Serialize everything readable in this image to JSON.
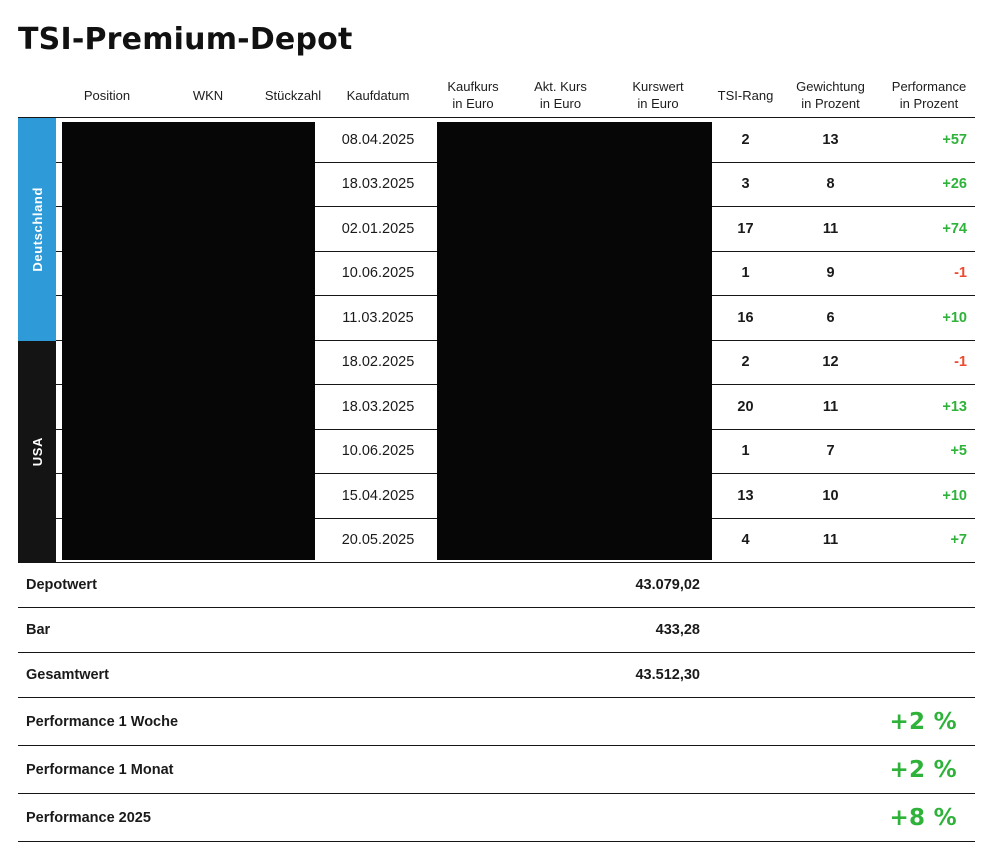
{
  "title": "TSI-Premium-Depot",
  "colors": {
    "green": "#2fb23a",
    "red": "#ee4b2e",
    "line": "#161616"
  },
  "table": {
    "headers": [
      "Position",
      "WKN",
      "Stückzahl",
      "Kaufdatum",
      "Kaufkurs\nin Euro",
      "Akt. Kurs\nin Euro",
      "Kurswert\nin Euro",
      "TSI-Rang",
      "Gewichtung\nin Prozent",
      "Performance\nin Prozent"
    ],
    "redacted_note": "Values in Position, WKN, Stückzahl, Kaufkurs, Akt. Kurs and Kurswert columns are blacked out",
    "groups": [
      {
        "label": "Deutschland",
        "color": "#2e9bd8"
      },
      {
        "label": "USA",
        "color": "#141414"
      }
    ],
    "rows": [
      {
        "group": "Deutschland",
        "kaufdatum": "08.04.2025",
        "tsi_rang": "2",
        "gewichtung": "13",
        "performance": "+57",
        "performance_color": "green"
      },
      {
        "group": "Deutschland",
        "kaufdatum": "18.03.2025",
        "tsi_rang": "3",
        "gewichtung": "8",
        "performance": "+26",
        "performance_color": "green"
      },
      {
        "group": "Deutschland",
        "kaufdatum": "02.01.2025",
        "tsi_rang": "17",
        "gewichtung": "11",
        "performance": "+74",
        "performance_color": "green"
      },
      {
        "group": "Deutschland",
        "kaufdatum": "10.06.2025",
        "tsi_rang": "1",
        "gewichtung": "9",
        "performance": "-1",
        "performance_color": "red"
      },
      {
        "group": "Deutschland",
        "kaufdatum": "11.03.2025",
        "tsi_rang": "16",
        "gewichtung": "6",
        "performance": "+10",
        "performance_color": "green"
      },
      {
        "group": "USA",
        "kaufdatum": "18.02.2025",
        "tsi_rang": "2",
        "gewichtung": "12",
        "performance": "-1",
        "performance_color": "red"
      },
      {
        "group": "USA",
        "kaufdatum": "18.03.2025",
        "tsi_rang": "20",
        "gewichtung": "11",
        "performance": "+13",
        "performance_color": "green"
      },
      {
        "group": "USA",
        "kaufdatum": "10.06.2025",
        "tsi_rang": "1",
        "gewichtung": "7",
        "performance": "+5",
        "performance_color": "green"
      },
      {
        "group": "USA",
        "kaufdatum": "15.04.2025",
        "tsi_rang": "13",
        "gewichtung": "10",
        "performance": "+10",
        "performance_color": "green"
      },
      {
        "group": "USA",
        "kaufdatum": "20.05.2025",
        "tsi_rang": "4",
        "gewichtung": "11",
        "performance": "+7",
        "performance_color": "green"
      }
    ]
  },
  "summary": [
    {
      "label": "Depotwert",
      "value": "43.079,02"
    },
    {
      "label": "Bar",
      "value": "433,28"
    },
    {
      "label": "Gesamtwert",
      "value": "43.512,30"
    }
  ],
  "performance": [
    {
      "label": "Performance 1 Woche",
      "value": "+2 %",
      "color": "green"
    },
    {
      "label": "Performance 1 Monat",
      "value": "+2 %",
      "color": "green"
    },
    {
      "label": "Performance 2025",
      "value": "+8 %",
      "color": "green"
    }
  ]
}
